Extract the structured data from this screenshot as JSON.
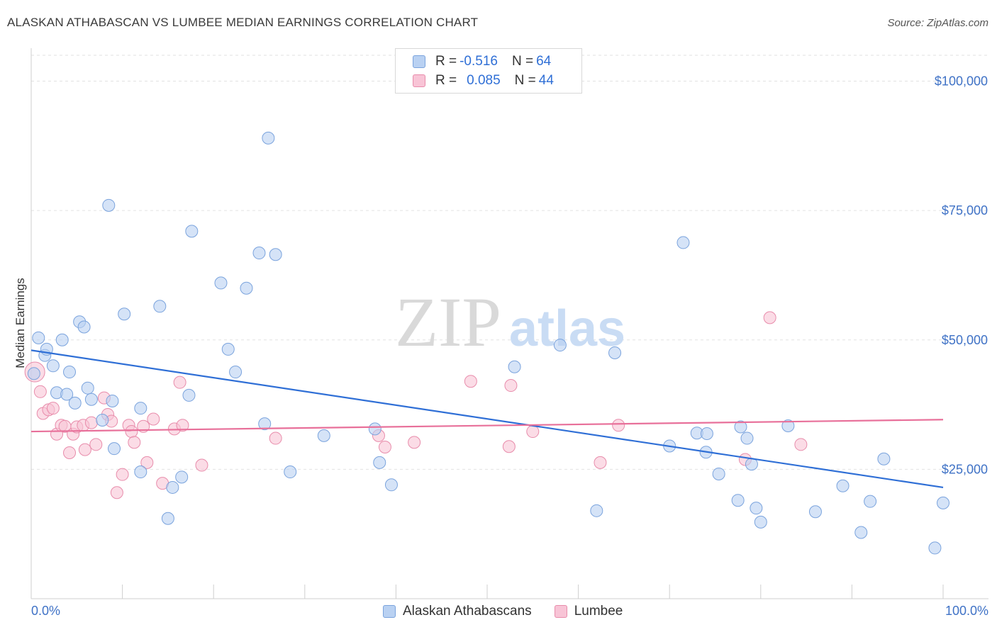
{
  "header": {
    "title": "ALASKAN ATHABASCAN VS LUMBEE MEDIAN EARNINGS CORRELATION CHART",
    "source": "Source: ZipAtlas.com"
  },
  "legend": {
    "series1": {
      "r_label": "R = ",
      "r_value": "-0.516",
      "n_label": "N = ",
      "n_value": "64"
    },
    "series2": {
      "r_label": "R = ",
      "r_value": "0.085",
      "n_label": "N = ",
      "n_value": "44"
    }
  },
  "watermark": {
    "zip": "ZIP",
    "atlas": "atlas"
  },
  "colors": {
    "blue_fill": "#b9d1f2",
    "blue_stroke": "#7aa3dd",
    "blue_line": "#2f6fd6",
    "pink_fill": "#f8c4d6",
    "pink_stroke": "#e88cab",
    "pink_line": "#e8709a",
    "axis_text": "#3f72c6"
  },
  "chart_data": {
    "type": "scatter",
    "title": "ALASKAN ATHABASCAN VS LUMBEE MEDIAN EARNINGS CORRELATION CHART",
    "xlabel": "",
    "ylabel": "Median Earnings",
    "xlim": [
      0,
      100
    ],
    "ylim": [
      0,
      105000
    ],
    "x_tick_labels": {
      "min": "0.0%",
      "max": "100.0%"
    },
    "y_ticks": [
      {
        "value": 100000,
        "label": "$100,000"
      },
      {
        "value": 75000,
        "label": "$75,000"
      },
      {
        "value": 50000,
        "label": "$50,000"
      },
      {
        "value": 25000,
        "label": "$25,000"
      }
    ],
    "series": [
      {
        "name": "Alaskan Athabascans",
        "color": "blue",
        "trend": {
          "x": [
            0,
            100
          ],
          "y": [
            48000,
            21500
          ]
        },
        "points": [
          [
            0.3,
            43500
          ],
          [
            0.8,
            50400
          ],
          [
            1.5,
            47000
          ],
          [
            1.7,
            48200
          ],
          [
            2.4,
            45000
          ],
          [
            2.8,
            39800
          ],
          [
            3.4,
            50000
          ],
          [
            3.9,
            39500
          ],
          [
            4.2,
            43800
          ],
          [
            4.8,
            37800
          ],
          [
            5.3,
            53500
          ],
          [
            5.8,
            52500
          ],
          [
            6.2,
            40700
          ],
          [
            6.6,
            38500
          ],
          [
            7.8,
            34500
          ],
          [
            8.5,
            76000
          ],
          [
            8.9,
            38200
          ],
          [
            9.1,
            29000
          ],
          [
            10.2,
            55000
          ],
          [
            12.0,
            36800
          ],
          [
            12.0,
            24500
          ],
          [
            14.1,
            56500
          ],
          [
            15.0,
            15500
          ],
          [
            15.5,
            21500
          ],
          [
            16.5,
            23500
          ],
          [
            17.3,
            39300
          ],
          [
            17.6,
            71000
          ],
          [
            20.8,
            61000
          ],
          [
            21.6,
            48200
          ],
          [
            22.4,
            43800
          ],
          [
            23.6,
            60000
          ],
          [
            25.0,
            66800
          ],
          [
            25.6,
            33800
          ],
          [
            26.0,
            89000
          ],
          [
            26.8,
            66500
          ],
          [
            28.4,
            24500
          ],
          [
            32.1,
            31500
          ],
          [
            37.7,
            32800
          ],
          [
            38.2,
            26300
          ],
          [
            39.5,
            22000
          ],
          [
            53.0,
            44800
          ],
          [
            58.0,
            49000
          ],
          [
            62.0,
            17000
          ],
          [
            64.0,
            47500
          ],
          [
            70.0,
            29500
          ],
          [
            71.5,
            68800
          ],
          [
            73.0,
            32000
          ],
          [
            74.0,
            28300
          ],
          [
            74.1,
            31900
          ],
          [
            75.4,
            24100
          ],
          [
            77.5,
            19000
          ],
          [
            77.8,
            33200
          ],
          [
            78.5,
            31000
          ],
          [
            79.0,
            26000
          ],
          [
            79.5,
            17500
          ],
          [
            80.0,
            14800
          ],
          [
            83.0,
            33400
          ],
          [
            86.0,
            16800
          ],
          [
            89.0,
            21800
          ],
          [
            91.0,
            12800
          ],
          [
            92.0,
            18800
          ],
          [
            93.5,
            27000
          ],
          [
            99.1,
            9800
          ],
          [
            100.0,
            18500
          ]
        ]
      },
      {
        "name": "Lumbee",
        "color": "pink",
        "trend": {
          "x": [
            0,
            100
          ],
          "y": [
            32300,
            34600
          ]
        },
        "points": [
          [
            0.4,
            43800
          ],
          [
            1.0,
            40000
          ],
          [
            1.3,
            35800
          ],
          [
            1.9,
            36500
          ],
          [
            2.4,
            36800
          ],
          [
            2.8,
            31800
          ],
          [
            3.3,
            33500
          ],
          [
            3.7,
            33300
          ],
          [
            4.2,
            28200
          ],
          [
            4.6,
            31800
          ],
          [
            5.0,
            33200
          ],
          [
            5.7,
            33500
          ],
          [
            5.9,
            28800
          ],
          [
            6.6,
            34000
          ],
          [
            7.1,
            29800
          ],
          [
            8.0,
            38800
          ],
          [
            8.4,
            35600
          ],
          [
            8.8,
            34300
          ],
          [
            9.4,
            20500
          ],
          [
            10.0,
            24000
          ],
          [
            10.7,
            33500
          ],
          [
            11.0,
            32300
          ],
          [
            11.3,
            30200
          ],
          [
            12.3,
            33300
          ],
          [
            12.7,
            26300
          ],
          [
            13.4,
            34700
          ],
          [
            14.4,
            22300
          ],
          [
            15.7,
            32800
          ],
          [
            16.3,
            41800
          ],
          [
            16.6,
            33500
          ],
          [
            18.7,
            25800
          ],
          [
            26.8,
            31000
          ],
          [
            38.1,
            31500
          ],
          [
            38.8,
            29300
          ],
          [
            42.0,
            30200
          ],
          [
            48.2,
            42000
          ],
          [
            52.4,
            29400
          ],
          [
            52.6,
            41200
          ],
          [
            55.0,
            32300
          ],
          [
            62.4,
            26300
          ],
          [
            64.4,
            33500
          ],
          [
            78.3,
            26900
          ],
          [
            81.0,
            54300
          ],
          [
            84.4,
            29800
          ]
        ]
      }
    ]
  }
}
